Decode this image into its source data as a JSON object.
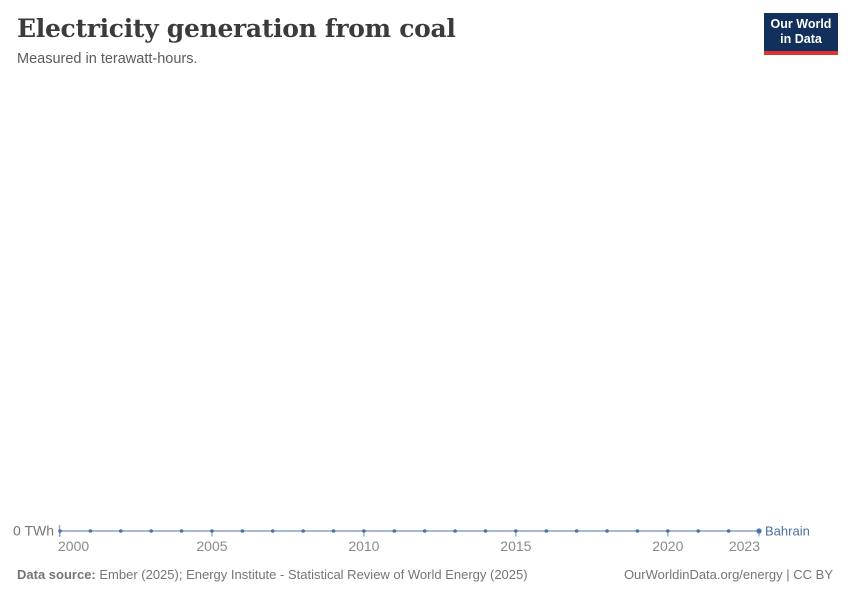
{
  "header": {
    "title": "Electricity generation from coal",
    "subtitle": "Measured in terawatt-hours."
  },
  "logo": {
    "line1": "Our World",
    "line2": "in Data",
    "bg_color": "#12305b",
    "stripe_color": "#d7362c"
  },
  "chart_data": {
    "type": "line",
    "title": "Electricity generation from coal",
    "ylabel": "terawatt-hours",
    "x": [
      2000,
      2001,
      2002,
      2003,
      2004,
      2005,
      2006,
      2007,
      2008,
      2009,
      2010,
      2011,
      2012,
      2013,
      2014,
      2015,
      2016,
      2017,
      2018,
      2019,
      2020,
      2021,
      2022,
      2023
    ],
    "series": [
      {
        "name": "Bahrain",
        "values": [
          0,
          0,
          0,
          0,
          0,
          0,
          0,
          0,
          0,
          0,
          0,
          0,
          0,
          0,
          0,
          0,
          0,
          0,
          0,
          0,
          0,
          0,
          0,
          0
        ]
      }
    ],
    "x_ticks": [
      2000,
      2005,
      2010,
      2015,
      2020,
      2023
    ],
    "y_ticks": [
      "0 TWh"
    ],
    "ylim": [
      0,
      0
    ],
    "grid": false,
    "legend_position": "end-of-line",
    "colors": {
      "line": "#a6bad8",
      "marker": "#4f72a6",
      "tick": "#8fa8cd",
      "entity_label": "#4d6f9f",
      "axis_text": "#8a8a8a",
      "y_axis_text": "#777777"
    }
  },
  "footer": {
    "source_label": "Data source:",
    "source_text": " Ember (2025); Energy Institute - Statistical Review of World Energy (2025)",
    "link_text": "OurWorldinData.org/energy | CC BY"
  }
}
